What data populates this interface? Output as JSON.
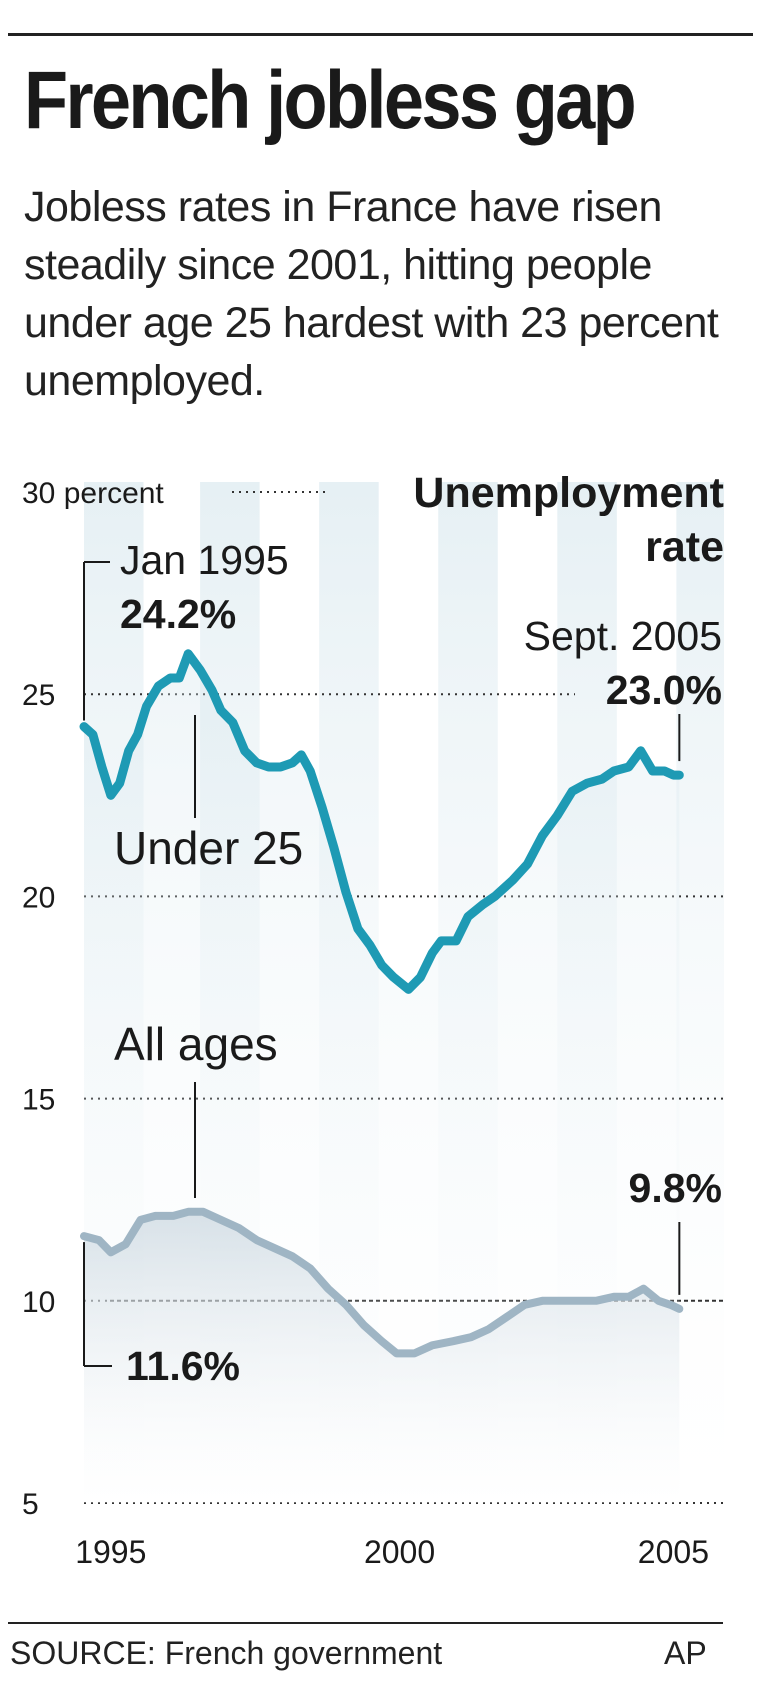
{
  "header": {
    "title": "French jobless gap",
    "subtitle": "Jobless rates in France have risen steadily since 2001, hitting people under age 25 hardest with 23 percent unemployed."
  },
  "footer": {
    "source": "SOURCE: French government",
    "credit": "AP"
  },
  "colors": {
    "under25_line": "#1e9ab4",
    "all_ages_line": "#9fb5c4",
    "band_fill": "#c8dde5",
    "grid": "#333333"
  },
  "chart_data": {
    "type": "line",
    "title": "French jobless gap",
    "legend_title": "Unemployment rate",
    "ylim": [
      5,
      30
    ],
    "y_ticks": [
      {
        "value": 30,
        "label": "30 percent"
      },
      {
        "value": 25,
        "label": "25"
      },
      {
        "value": 20,
        "label": "20"
      },
      {
        "value": 15,
        "label": "15"
      },
      {
        "value": 10,
        "label": "10"
      },
      {
        "value": 5,
        "label": "5"
      }
    ],
    "xlim": [
      1995.0,
      2005.75
    ],
    "x_ticks": [
      {
        "value": 1995.45,
        "label": "1995"
      },
      {
        "value": 2000.3,
        "label": "2000"
      },
      {
        "value": 2004.9,
        "label": "2005"
      }
    ],
    "grid": true,
    "series": [
      {
        "name": "Under 25",
        "color": "#1e9ab4",
        "points": [
          [
            1995.0,
            24.2
          ],
          [
            1995.15,
            24.0
          ],
          [
            1995.3,
            23.2
          ],
          [
            1995.45,
            22.5
          ],
          [
            1995.6,
            22.8
          ],
          [
            1995.75,
            23.6
          ],
          [
            1995.9,
            24.0
          ],
          [
            1996.05,
            24.7
          ],
          [
            1996.25,
            25.2
          ],
          [
            1996.45,
            25.4
          ],
          [
            1996.6,
            25.4
          ],
          [
            1996.75,
            26.0
          ],
          [
            1996.95,
            25.6
          ],
          [
            1997.15,
            25.1
          ],
          [
            1997.3,
            24.6
          ],
          [
            1997.5,
            24.3
          ],
          [
            1997.7,
            23.6
          ],
          [
            1997.9,
            23.3
          ],
          [
            1998.1,
            23.2
          ],
          [
            1998.3,
            23.2
          ],
          [
            1998.5,
            23.3
          ],
          [
            1998.65,
            23.5
          ],
          [
            1998.8,
            23.1
          ],
          [
            1999.0,
            22.2
          ],
          [
            1999.2,
            21.2
          ],
          [
            1999.4,
            20.1
          ],
          [
            1999.6,
            19.2
          ],
          [
            1999.8,
            18.8
          ],
          [
            2000.0,
            18.3
          ],
          [
            2000.2,
            18.0
          ],
          [
            2000.45,
            17.7
          ],
          [
            2000.65,
            18.0
          ],
          [
            2000.85,
            18.6
          ],
          [
            2001.0,
            18.9
          ],
          [
            2001.25,
            18.9
          ],
          [
            2001.45,
            19.5
          ],
          [
            2001.7,
            19.8
          ],
          [
            2001.9,
            20.0
          ],
          [
            2002.2,
            20.4
          ],
          [
            2002.45,
            20.8
          ],
          [
            2002.7,
            21.5
          ],
          [
            2002.95,
            22.0
          ],
          [
            2003.2,
            22.6
          ],
          [
            2003.45,
            22.8
          ],
          [
            2003.7,
            22.9
          ],
          [
            2003.9,
            23.1
          ],
          [
            2004.15,
            23.2
          ],
          [
            2004.35,
            23.6
          ],
          [
            2004.55,
            23.1
          ],
          [
            2004.75,
            23.1
          ],
          [
            2004.9,
            23.0
          ],
          [
            2005.0,
            23.0
          ]
        ]
      },
      {
        "name": "All ages",
        "color": "#9fb5c4",
        "points": [
          [
            1995.0,
            11.6
          ],
          [
            1995.25,
            11.5
          ],
          [
            1995.45,
            11.2
          ],
          [
            1995.7,
            11.4
          ],
          [
            1995.95,
            12.0
          ],
          [
            1996.2,
            12.1
          ],
          [
            1996.5,
            12.1
          ],
          [
            1996.75,
            12.2
          ],
          [
            1997.0,
            12.2
          ],
          [
            1997.3,
            12.0
          ],
          [
            1997.6,
            11.8
          ],
          [
            1997.9,
            11.5
          ],
          [
            1998.2,
            11.3
          ],
          [
            1998.5,
            11.1
          ],
          [
            1998.8,
            10.8
          ],
          [
            1999.1,
            10.3
          ],
          [
            1999.4,
            9.9
          ],
          [
            1999.7,
            9.4
          ],
          [
            2000.0,
            9.0
          ],
          [
            2000.25,
            8.7
          ],
          [
            2000.55,
            8.7
          ],
          [
            2000.85,
            8.9
          ],
          [
            2001.2,
            9.0
          ],
          [
            2001.5,
            9.1
          ],
          [
            2001.8,
            9.3
          ],
          [
            2002.1,
            9.6
          ],
          [
            2002.4,
            9.9
          ],
          [
            2002.7,
            10.0
          ],
          [
            2003.0,
            10.0
          ],
          [
            2003.3,
            10.0
          ],
          [
            2003.6,
            10.0
          ],
          [
            2003.9,
            10.1
          ],
          [
            2004.15,
            10.1
          ],
          [
            2004.4,
            10.3
          ],
          [
            2004.65,
            10.0
          ],
          [
            2004.85,
            9.9
          ],
          [
            2005.0,
            9.8
          ]
        ]
      }
    ],
    "annotations": [
      {
        "id": "jan1995_date",
        "text": "Jan 1995",
        "bold": false
      },
      {
        "id": "jan1995_value",
        "text": "24.2%",
        "bold": true
      },
      {
        "id": "sept2005_date",
        "text": "Sept. 2005",
        "bold": false
      },
      {
        "id": "sept2005_value",
        "text": "23.0%",
        "bold": true
      },
      {
        "id": "under25_label",
        "text": "Under 25",
        "bold": false
      },
      {
        "id": "allages_label",
        "text": "All ages",
        "bold": false
      },
      {
        "id": "allages_end_value",
        "text": "9.8%",
        "bold": true
      },
      {
        "id": "allages_start_value",
        "text": "11.6%",
        "bold": true
      }
    ]
  }
}
